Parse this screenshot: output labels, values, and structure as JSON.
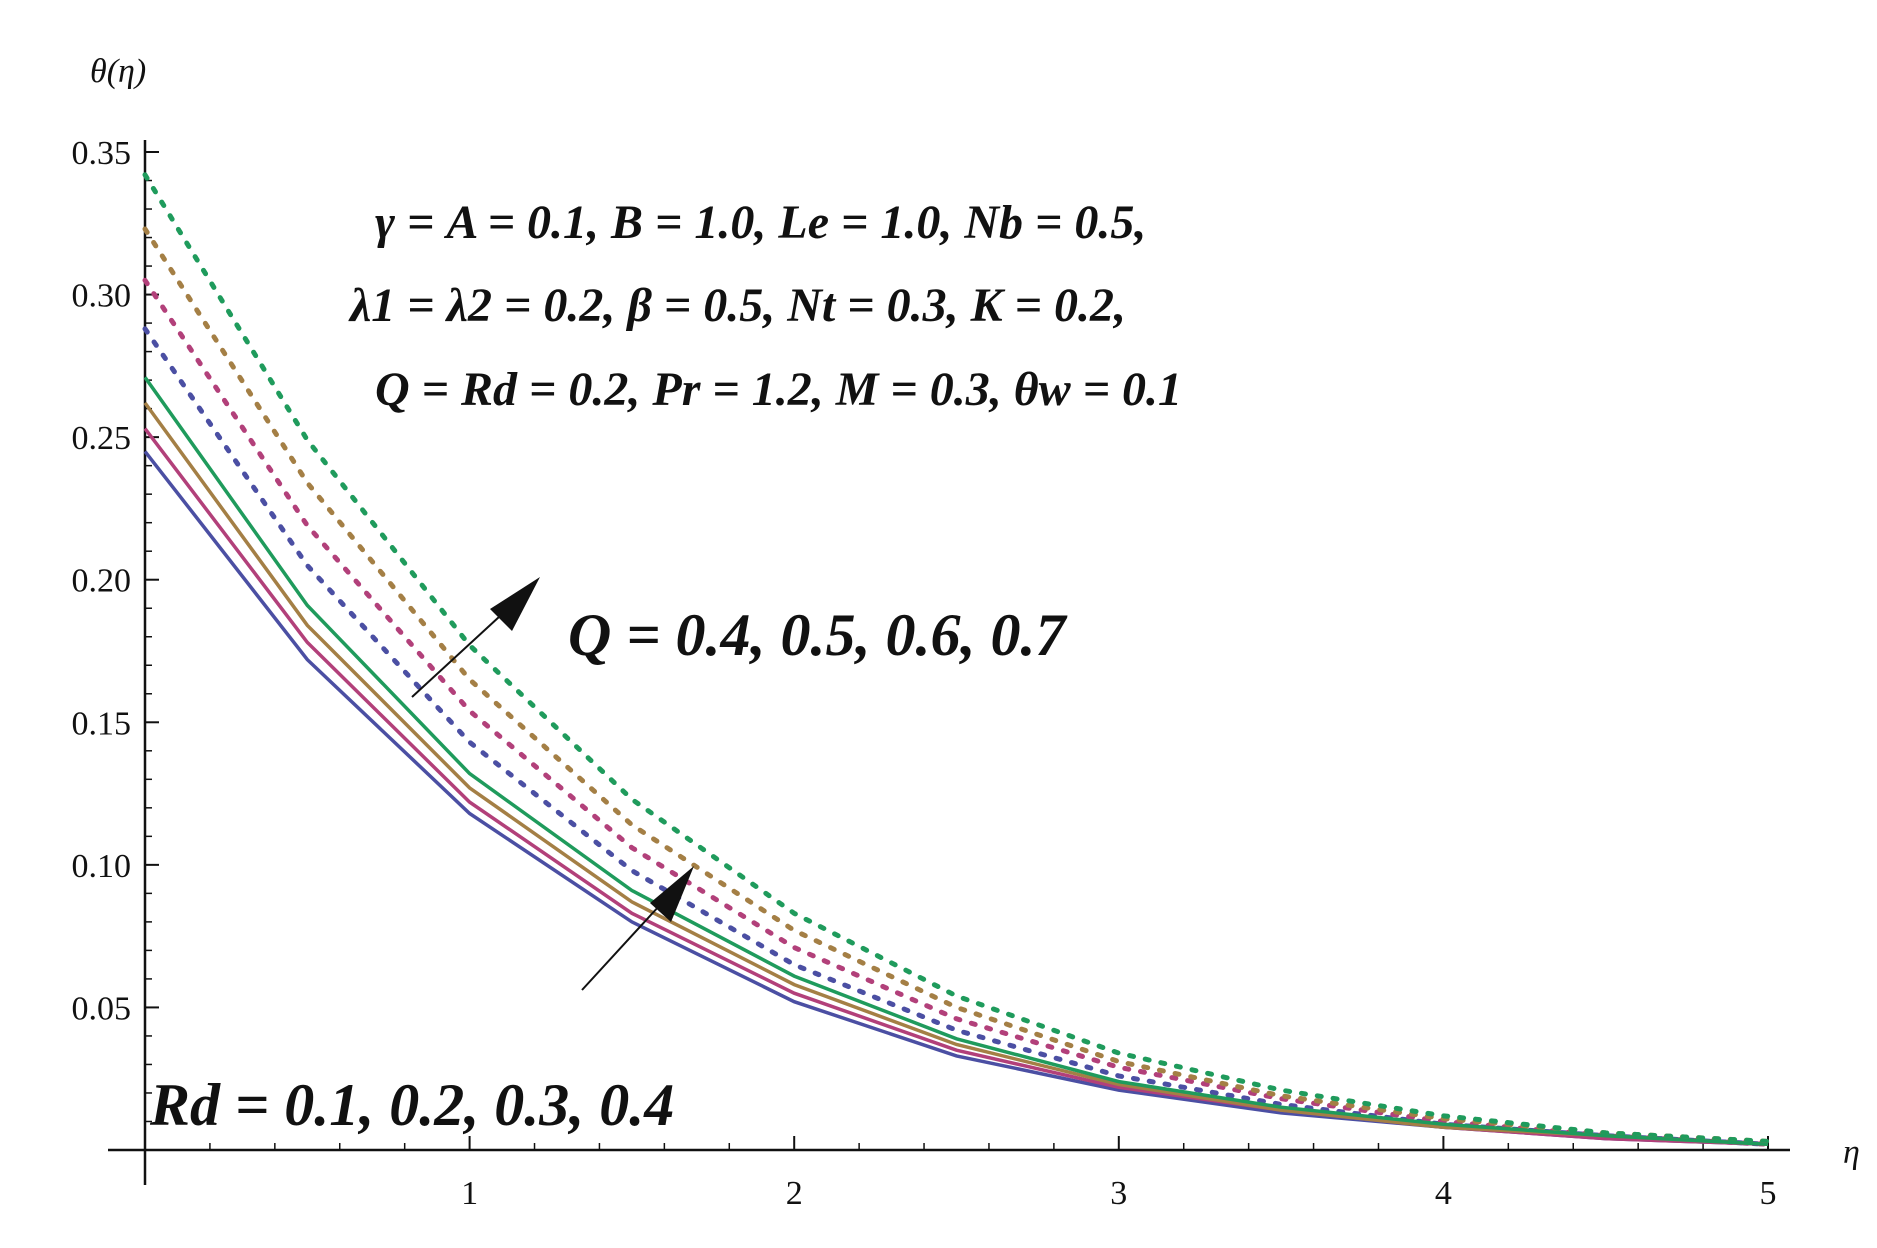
{
  "chart_data": {
    "type": "line",
    "ylabel": "θ(η)",
    "xlabel": "η",
    "xlim": [
      0,
      5
    ],
    "ylim": [
      0,
      0.35
    ],
    "x_ticks": [
      "1",
      "2",
      "3",
      "4",
      "5"
    ],
    "y_ticks": [
      "0.05",
      "0.10",
      "0.15",
      "0.20",
      "0.25",
      "0.30",
      "0.35"
    ],
    "grid": false,
    "legend": "none",
    "parameters": [
      "γ = A = 0.1, B = 1.0, Le = 1.0, Nb = 0.5,",
      "λ1 = λ2 = 0.2, β = 0.5, Nt = 0.3, K = 0.2,",
      "Q = Rd = 0.2, Pr = 1.2, M = 0.3, θw = 0.1"
    ],
    "annotations": [
      "Q = 0.4, 0.5, 0.6, 0.7",
      "Rd = 0.1, 0.2, 0.3, 0.4"
    ],
    "colors": [
      "#4b4fa3",
      "#b2407a",
      "#a47f45",
      "#1f9b5c"
    ],
    "x": [
      0,
      0.5,
      1,
      1.5,
      2,
      2.5,
      3,
      3.5,
      4,
      4.5,
      5
    ],
    "solid_group": [
      {
        "values": [
          0.245,
          0.172,
          0.118,
          0.08,
          0.052,
          0.033,
          0.021,
          0.013,
          0.008,
          0.004,
          0.002
        ]
      },
      {
        "values": [
          0.253,
          0.178,
          0.122,
          0.083,
          0.055,
          0.035,
          0.022,
          0.014,
          0.008,
          0.004,
          0.002
        ]
      },
      {
        "values": [
          0.262,
          0.184,
          0.127,
          0.087,
          0.058,
          0.037,
          0.023,
          0.014,
          0.008,
          0.005,
          0.002
        ]
      },
      {
        "values": [
          0.271,
          0.191,
          0.132,
          0.091,
          0.061,
          0.039,
          0.024,
          0.015,
          0.009,
          0.005,
          0.002
        ]
      }
    ],
    "dotted_group": [
      {
        "values": [
          0.288,
          0.205,
          0.143,
          0.098,
          0.065,
          0.042,
          0.026,
          0.016,
          0.009,
          0.005,
          0.002
        ]
      },
      {
        "values": [
          0.305,
          0.219,
          0.154,
          0.106,
          0.071,
          0.046,
          0.029,
          0.018,
          0.01,
          0.005,
          0.002
        ]
      },
      {
        "values": [
          0.323,
          0.234,
          0.165,
          0.114,
          0.077,
          0.05,
          0.031,
          0.019,
          0.011,
          0.006,
          0.003
        ]
      },
      {
        "values": [
          0.342,
          0.249,
          0.177,
          0.123,
          0.083,
          0.054,
          0.034,
          0.021,
          0.012,
          0.006,
          0.003
        ]
      }
    ]
  }
}
